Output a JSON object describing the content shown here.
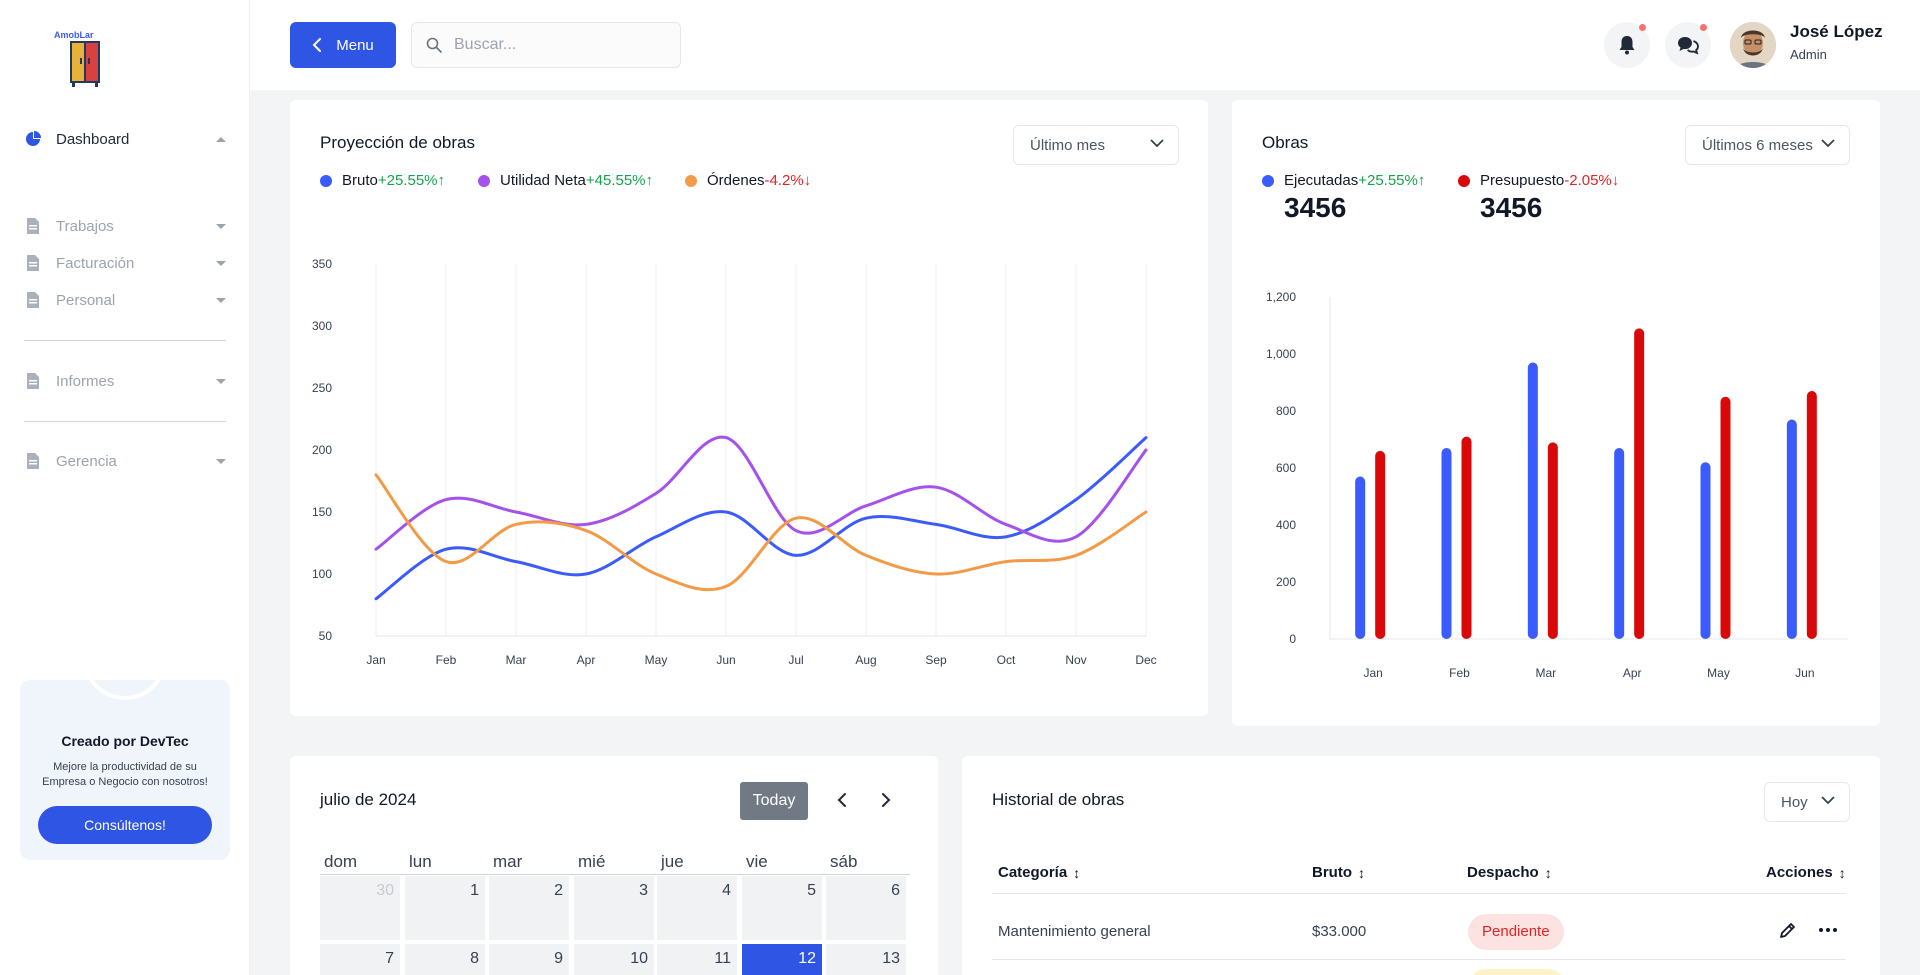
{
  "sidebar": {
    "logo_text": "AmobLar",
    "items": [
      {
        "label": "Dashboard"
      },
      {
        "label": "Trabajos"
      },
      {
        "label": "Facturación"
      },
      {
        "label": "Personal"
      },
      {
        "label": "Informes"
      },
      {
        "label": "Gerencia"
      }
    ],
    "promo": {
      "title": "Creado por DevTec",
      "subtitle": "Mejore la productividad de su Empresa o Negocio con nosotros!",
      "button": "Consúltenos!"
    }
  },
  "header": {
    "menu_label": "Menu",
    "search_placeholder": "Buscar...",
    "user_name": "José López",
    "user_role": "Admin"
  },
  "projection": {
    "title": "Proyección de obras",
    "dropdown": "Último mes",
    "legend": [
      {
        "name": "Bruto",
        "change": "+25.55%",
        "arrow": "↑",
        "color": "#3b5bfd"
      },
      {
        "name": "Utilidad Neta",
        "change": "+45.55%",
        "arrow": "↑",
        "color": "#a552ec"
      },
      {
        "name": "Órdenes",
        "change": "-4.2%",
        "arrow": "↓",
        "color": "#f39a47"
      }
    ]
  },
  "obras": {
    "title": "Obras",
    "dropdown": "Últimos 6 meses",
    "legend": [
      {
        "name": "Ejecutadas",
        "change": "+25.55%",
        "arrow": "↑",
        "value": "3456",
        "color": "#3b5bfd"
      },
      {
        "name": "Presupuesto",
        "change": "-2.05%",
        "arrow": "↓",
        "value": "3456",
        "color": "#d90909"
      }
    ]
  },
  "calendar": {
    "title": "julio de 2024",
    "today_label": "Today",
    "weekdays": [
      "dom",
      "lun",
      "mar",
      "mié",
      "jue",
      "vie",
      "sáb"
    ],
    "days": [
      "30",
      "1",
      "2",
      "3",
      "4",
      "5",
      "6",
      "7",
      "8",
      "9",
      "10",
      "11",
      "12",
      "13"
    ],
    "selected": "12"
  },
  "history": {
    "title": "Historial de obras",
    "dropdown": "Hoy",
    "columns": [
      "Categoría",
      "Bruto",
      "Despacho",
      "Acciones"
    ],
    "sort_glyph": "↕",
    "rows": [
      {
        "categoria": "Mantenimiento general",
        "bruto": "$33.000",
        "despacho": "Pendiente"
      }
    ]
  },
  "chart_data": [
    {
      "type": "line",
      "title": "Proyección de obras",
      "categories": [
        "Jan",
        "Feb",
        "Mar",
        "Apr",
        "May",
        "Jun",
        "Jul",
        "Aug",
        "Sep",
        "Oct",
        "Nov",
        "Dec"
      ],
      "yticks": [
        50,
        100,
        150,
        200,
        250,
        300,
        350
      ],
      "ylim": [
        50,
        350
      ],
      "grid": "vertical",
      "series": [
        {
          "name": "Bruto",
          "color": "#3b5bfd",
          "values": [
            80,
            120,
            110,
            100,
            130,
            150,
            115,
            145,
            140,
            130,
            160,
            210
          ]
        },
        {
          "name": "Utilidad Neta",
          "color": "#a552ec",
          "values": [
            120,
            160,
            150,
            140,
            165,
            210,
            135,
            155,
            170,
            140,
            130,
            200
          ]
        },
        {
          "name": "Órdenes",
          "color": "#f39a47",
          "values": [
            180,
            110,
            140,
            135,
            100,
            90,
            145,
            115,
            100,
            110,
            115,
            150
          ]
        }
      ]
    },
    {
      "type": "bar",
      "title": "Obras",
      "categories": [
        "Jan",
        "Feb",
        "Mar",
        "Apr",
        "May",
        "Jun"
      ],
      "yticks": [
        0,
        200,
        400,
        600,
        800,
        1000,
        1200
      ],
      "ytick_labels": [
        "0",
        "200",
        "400",
        "600",
        "800",
        "1,000",
        "1,200"
      ],
      "ylim": [
        0,
        1200
      ],
      "series": [
        {
          "name": "Ejecutadas",
          "color": "#3b5bfd",
          "values": [
            570,
            670,
            970,
            670,
            620,
            770
          ]
        },
        {
          "name": "Presupuesto",
          "color": "#d90909",
          "values": [
            660,
            710,
            690,
            1090,
            850,
            870
          ]
        }
      ]
    }
  ]
}
